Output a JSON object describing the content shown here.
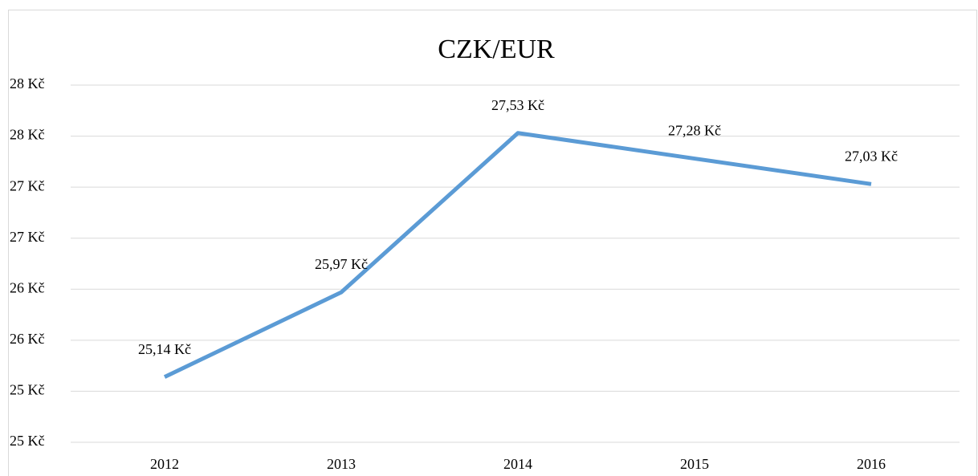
{
  "chart_data": {
    "type": "line",
    "title": "CZK/EUR",
    "categories": [
      "2012",
      "2013",
      "2014",
      "2015",
      "2016"
    ],
    "series": [
      {
        "name": "CZK/EUR",
        "color": "#5b9bd5",
        "values": [
          25.14,
          25.97,
          27.53,
          27.28,
          27.03
        ],
        "value_labels": [
          "25,14 Kč",
          "25,97 Kč",
          "27,53 Kč",
          "27,28 Kč",
          "27,03 Kč"
        ]
      }
    ],
    "ylim": [
      24.5,
      28
    ],
    "yticks": [
      {
        "value": 24.5,
        "label": "25 Kč"
      },
      {
        "value": 25,
        "label": "25 Kč"
      },
      {
        "value": 25.5,
        "label": "26 Kč"
      },
      {
        "value": 26,
        "label": "26 Kč"
      },
      {
        "value": 26.5,
        "label": "27 Kč"
      },
      {
        "value": 27,
        "label": "27 Kč"
      },
      {
        "value": 27.5,
        "label": "28 Kč"
      },
      {
        "value": 28,
        "label": "28 Kč"
      }
    ],
    "grid": true
  }
}
